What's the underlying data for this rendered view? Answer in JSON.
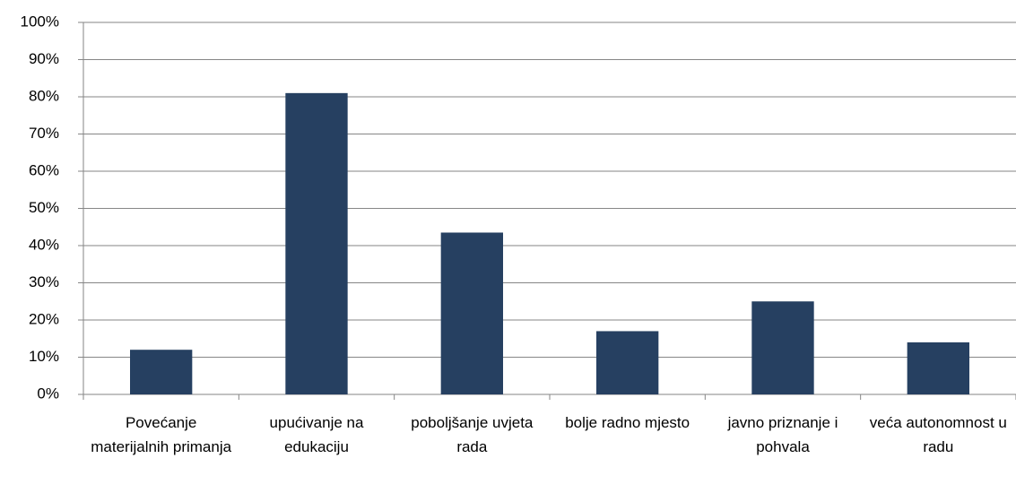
{
  "chart_data": {
    "type": "bar",
    "categories": [
      "Povećanje materijalnih primanja",
      "upućivanje na edukaciju",
      "poboljšanje uvjeta rada",
      "bolje radno mjesto",
      "javno priznanje i pohvala",
      "veća autonomnost u radu"
    ],
    "values": [
      12,
      81,
      43.5,
      17,
      25,
      14
    ],
    "color": "#264061",
    "ylim": [
      0,
      100
    ],
    "yticks": [
      {
        "value": 0,
        "label": "0%"
      },
      {
        "value": 10,
        "label": "10%"
      },
      {
        "value": 20,
        "label": "20%"
      },
      {
        "value": 30,
        "label": "30%"
      },
      {
        "value": 40,
        "label": "40%"
      },
      {
        "value": 50,
        "label": "50%"
      },
      {
        "value": 60,
        "label": "60%"
      },
      {
        "value": 70,
        "label": "70%"
      },
      {
        "value": 80,
        "label": "80%"
      },
      {
        "value": 90,
        "label": "90%"
      },
      {
        "value": 100,
        "label": "100%"
      }
    ],
    "grid": true
  }
}
